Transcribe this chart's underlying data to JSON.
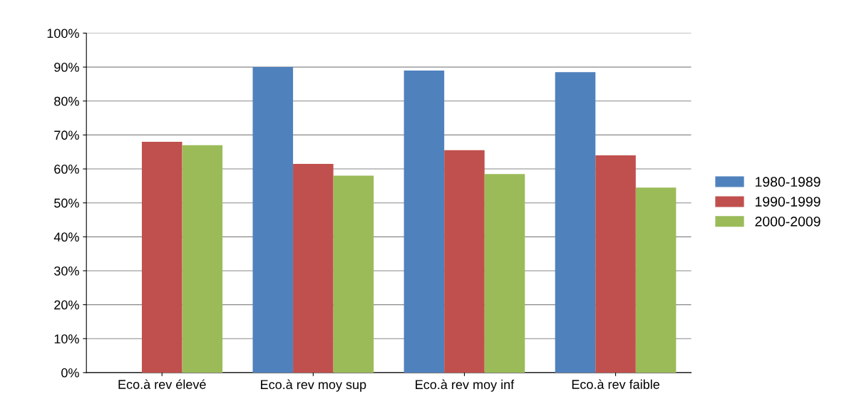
{
  "chart_data": {
    "type": "bar",
    "categories": [
      "Eco.à rev élevé",
      "Eco.à rev moy sup",
      "Eco.à rev moy inf",
      "Eco.à rev faible"
    ],
    "series": [
      {
        "name": "1980-1989",
        "color": "#4f81bd",
        "values": [
          0,
          90,
          89,
          88.5
        ]
      },
      {
        "name": "1990-1999",
        "color": "#c0504d",
        "values": [
          68,
          61.5,
          65.5,
          64
        ]
      },
      {
        "name": "2000-2009",
        "color": "#9bbb59",
        "values": [
          67,
          58,
          58.5,
          54.5
        ]
      }
    ],
    "ylim": [
      0,
      100
    ],
    "yticks": [
      {
        "value": 0,
        "label": "0%"
      },
      {
        "value": 10,
        "label": "10%"
      },
      {
        "value": 20,
        "label": "20%"
      },
      {
        "value": 30,
        "label": "30%"
      },
      {
        "value": 40,
        "label": "40%"
      },
      {
        "value": 50,
        "label": "50%"
      },
      {
        "value": 60,
        "label": "60%"
      },
      {
        "value": 70,
        "label": "70%"
      },
      {
        "value": 80,
        "label": "80%"
      },
      {
        "value": 90,
        "label": "90%"
      },
      {
        "value": 100,
        "label": "100%"
      }
    ],
    "grid": "y",
    "legend": "right"
  }
}
